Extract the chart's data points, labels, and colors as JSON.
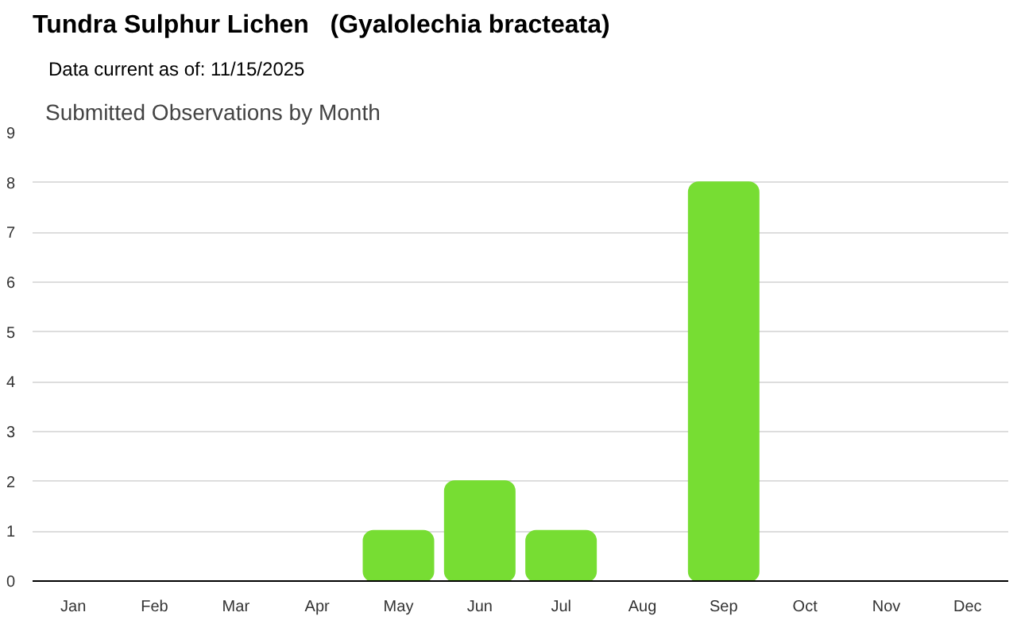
{
  "chart_data": {
    "type": "bar",
    "title": "Tundra Sulphur Lichen   (Gyalolechia bracteata)",
    "subtitle": "Data current as of: 11/15/2025",
    "annotations": [
      "Submitted Observations by Month"
    ],
    "categories": [
      "Jan",
      "Feb",
      "Mar",
      "Apr",
      "May",
      "Jun",
      "Jul",
      "Aug",
      "Sep",
      "Oct",
      "Nov",
      "Dec"
    ],
    "values": [
      0,
      0,
      0,
      0,
      1,
      2,
      1,
      0,
      8,
      0,
      0,
      0
    ],
    "color": "#77dd33",
    "ylim": [
      0,
      9
    ],
    "yticks": [
      0,
      1,
      2,
      3,
      4,
      5,
      6,
      7,
      8,
      9
    ],
    "grid": "y"
  }
}
